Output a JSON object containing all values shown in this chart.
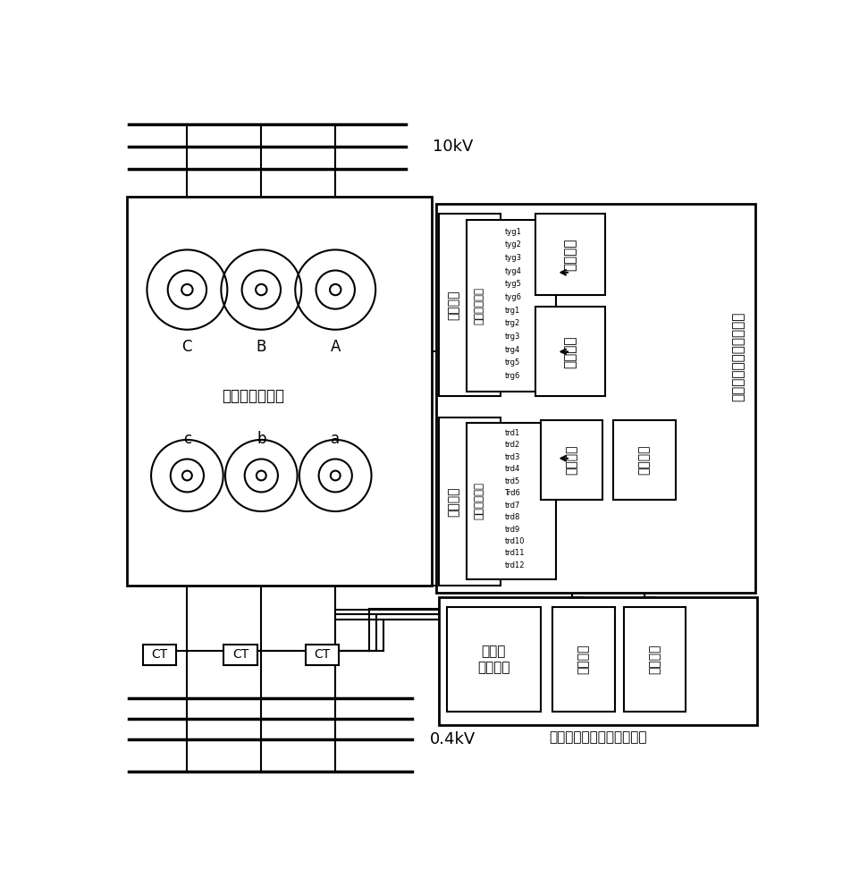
{
  "bg_color": "#ffffff",
  "hv_label": "10kV",
  "lv_label": "0.4kV",
  "transformer_label": "配电变压器本体",
  "hv_winding_label": "高压绕组",
  "lv_winding_label": "低压绕组",
  "hv_tap_label": "高压分接抓头",
  "lv_tap_label": "低压分接抓头",
  "phase_labels_hv": [
    "C",
    "B",
    "A"
  ],
  "phase_labels_lv": [
    "c",
    "b",
    "a"
  ],
  "tyg_labels": [
    "tyg1",
    "tyg2",
    "tyg3",
    "tyg4",
    "tyg5",
    "tyg6",
    "trg1",
    "trg2",
    "trg3",
    "trg4",
    "trg5",
    "trg6"
  ],
  "trd_labels": [
    "trd1",
    "trd2",
    "trd3",
    "trd4",
    "trd5",
    "Trd6",
    "trd7",
    "trd8",
    "trd9",
    "trd10",
    "trd11",
    "trd12"
  ],
  "switch_label": "有载调容调压一体式开关",
  "adj_v_label": "调压触头",
  "adj_c_label": "调容触头",
  "tap_pos_label": "分接位置",
  "ctrl_label": "控制电路",
  "acq_label": "电压、\n电流采集",
  "remote_in_label": "遥信输入",
  "remote_out_label": "遥控输出",
  "control_device_label": "有载调容调压综合控制装置",
  "ct_label": "CT"
}
